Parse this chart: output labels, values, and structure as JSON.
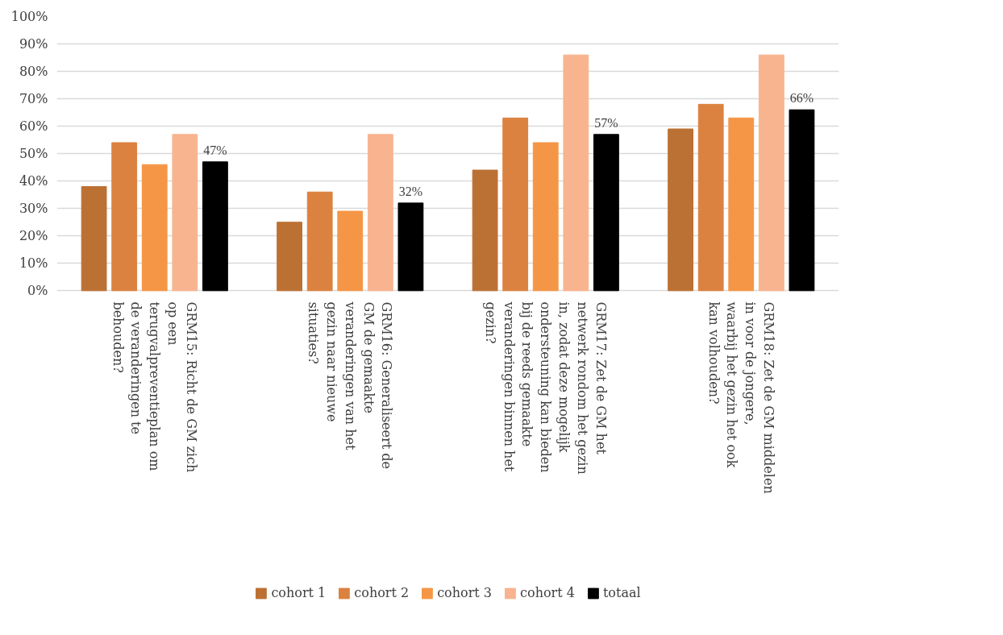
{
  "chart_data": {
    "type": "bar",
    "categories": [
      "GRM15: Richt de GM zich op een terugvalpreventieplan om de veranderingen te behouden?",
      "GRM16: Generaliseert de GM de gemaakte veranderingen van het gezin naar nieuwe situaties?",
      "GRM17: Zet de GM het netwerk rondom het gezin in, zodat deze mogelijk ondersteuning kan bieden bij de reeds gemaakte veranderingen binnen het gezin?",
      "GRM18: Zet de GM middelen in voor de jongere, waarbij het gezin het ook kan volhouden?"
    ],
    "series": [
      {
        "name": "cohort 1",
        "color": "#bc7134",
        "values": [
          38,
          25,
          44,
          59
        ]
      },
      {
        "name": "cohort 2",
        "color": "#db8240",
        "values": [
          54,
          36,
          63,
          68
        ]
      },
      {
        "name": "cohort 3",
        "color": "#f59646",
        "values": [
          46,
          29,
          54,
          63
        ]
      },
      {
        "name": "cohort 4",
        "color": "#f8b48f",
        "values": [
          57,
          57,
          86,
          86
        ]
      },
      {
        "name": "totaal",
        "color": "#000000",
        "values": [
          47,
          32,
          57,
          66
        ],
        "value_labels": [
          "47%",
          "32%",
          "57%",
          "66%"
        ]
      }
    ],
    "ylim": [
      0,
      100
    ],
    "yticks": [
      {
        "value": 0,
        "label": "0%"
      },
      {
        "value": 10,
        "label": "10%"
      },
      {
        "value": 20,
        "label": "20%"
      },
      {
        "value": 30,
        "label": "30%"
      },
      {
        "value": 40,
        "label": "40%"
      },
      {
        "value": 50,
        "label": "50%"
      },
      {
        "value": 60,
        "label": "60%"
      },
      {
        "value": 70,
        "label": "70%"
      },
      {
        "value": 80,
        "label": "80%"
      },
      {
        "value": 90,
        "label": "90%"
      },
      {
        "value": 100,
        "label": "100%"
      }
    ],
    "grid": "y",
    "legend": "bottom"
  }
}
